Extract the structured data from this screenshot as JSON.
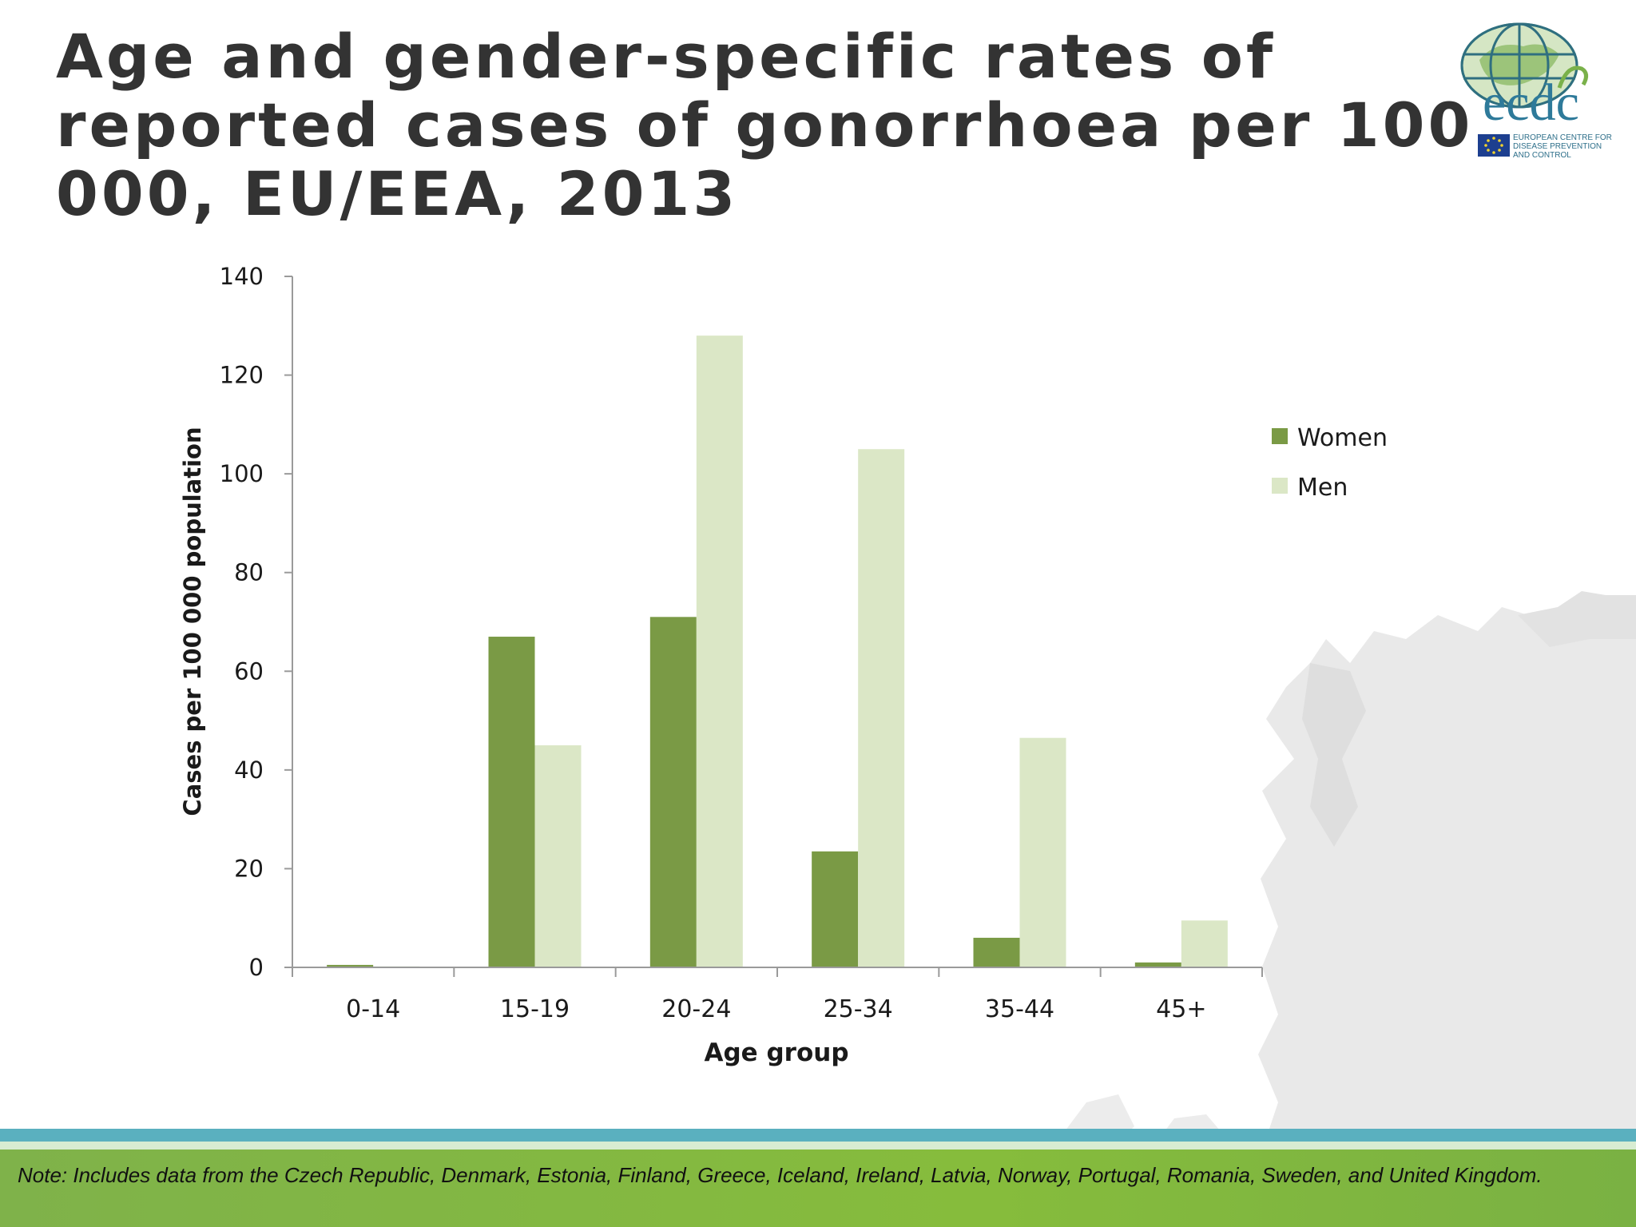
{
  "slide": {
    "title": "Age and gender-specific rates of reported cases of gonorrhoea per 100 000, EU/EEA, 2013",
    "note": "Note: Includes data from the Czech Republic, Denmark, Estonia, Finland, Greece, Iceland, Ireland, Latvia, Norway, Portugal, Romania, Sweden, and United Kingdom."
  },
  "logo": {
    "name": "ecdc",
    "subtitle_lines": [
      "EUROPEAN CENTRE FOR",
      "DISEASE PREVENTION",
      "AND CONTROL"
    ]
  },
  "colors": {
    "women": "#7a9a45",
    "men": "#dbe7c6",
    "title": "#333333",
    "teal_band": "#5ab0bf",
    "green_band": "#7fb24a"
  },
  "chart_data": {
    "type": "bar",
    "title": "",
    "xlabel": "Age group",
    "ylabel": "Cases per 100 000 population",
    "categories": [
      "0-14",
      "15-19",
      "20-24",
      "25-34",
      "35-44",
      "45+"
    ],
    "series": [
      {
        "name": "Women",
        "values": [
          0.5,
          67,
          71,
          23.5,
          6,
          1
        ]
      },
      {
        "name": "Men",
        "values": [
          0.2,
          45,
          128,
          105,
          46.5,
          9.5
        ]
      }
    ],
    "ylim": [
      0,
      140
    ],
    "yticks": [
      0,
      20,
      40,
      60,
      80,
      100,
      120,
      140
    ],
    "grid": false,
    "legend_position": "right"
  }
}
